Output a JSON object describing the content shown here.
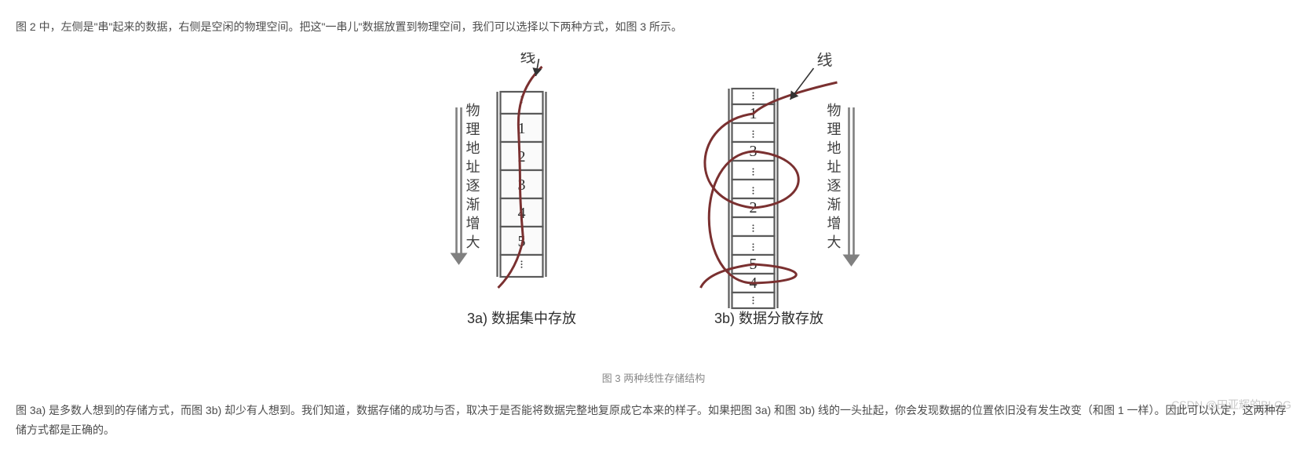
{
  "top_text": "图 2 中，左侧是\"串\"起来的数据，右侧是空闲的物理空间。把这\"一串儿\"数据放置到物理空间，我们可以选择以下两种方式，如图 3 所示。",
  "bottom_text": "图 3a) 是多数人想到的存储方式，而图 3b) 却少有人想到。我们知道，数据存储的成功与否，取决于是否能将数据完整地复原成它本来的样子。如果把图 3a) 和图 3b) 线的一头扯起，你会发现数据的位置依旧没有发生改变（和图 1 一样）。因此可以认定，这两种存储方式都是正确的。",
  "figure_caption": "图 3 两种线性存储结构",
  "sub_labels": {
    "a": "3a) 数据集中存放",
    "b": "3b) 数据分散存放"
  },
  "side_label_chars": [
    "物",
    "理",
    "地",
    "址",
    "逐",
    "渐",
    "增",
    "大"
  ],
  "thread_label": "线",
  "diagram_a": {
    "cells": [
      "1",
      "2",
      "3",
      "4",
      "5"
    ],
    "cell_fill": "#fafafa"
  },
  "diagram_b": {
    "cells": [
      "1",
      "",
      "3",
      "",
      "",
      "2",
      "",
      "",
      "5",
      "4"
    ],
    "cell_fill": "#ffffff"
  },
  "colors": {
    "thread": "#7a3030",
    "ink": "#404040",
    "box": "#5a5a5a",
    "arrow": "#333333",
    "gray_arrow": "#808080",
    "caption": "#888888"
  },
  "watermark": "CSDN @田亚辉的BLOG"
}
